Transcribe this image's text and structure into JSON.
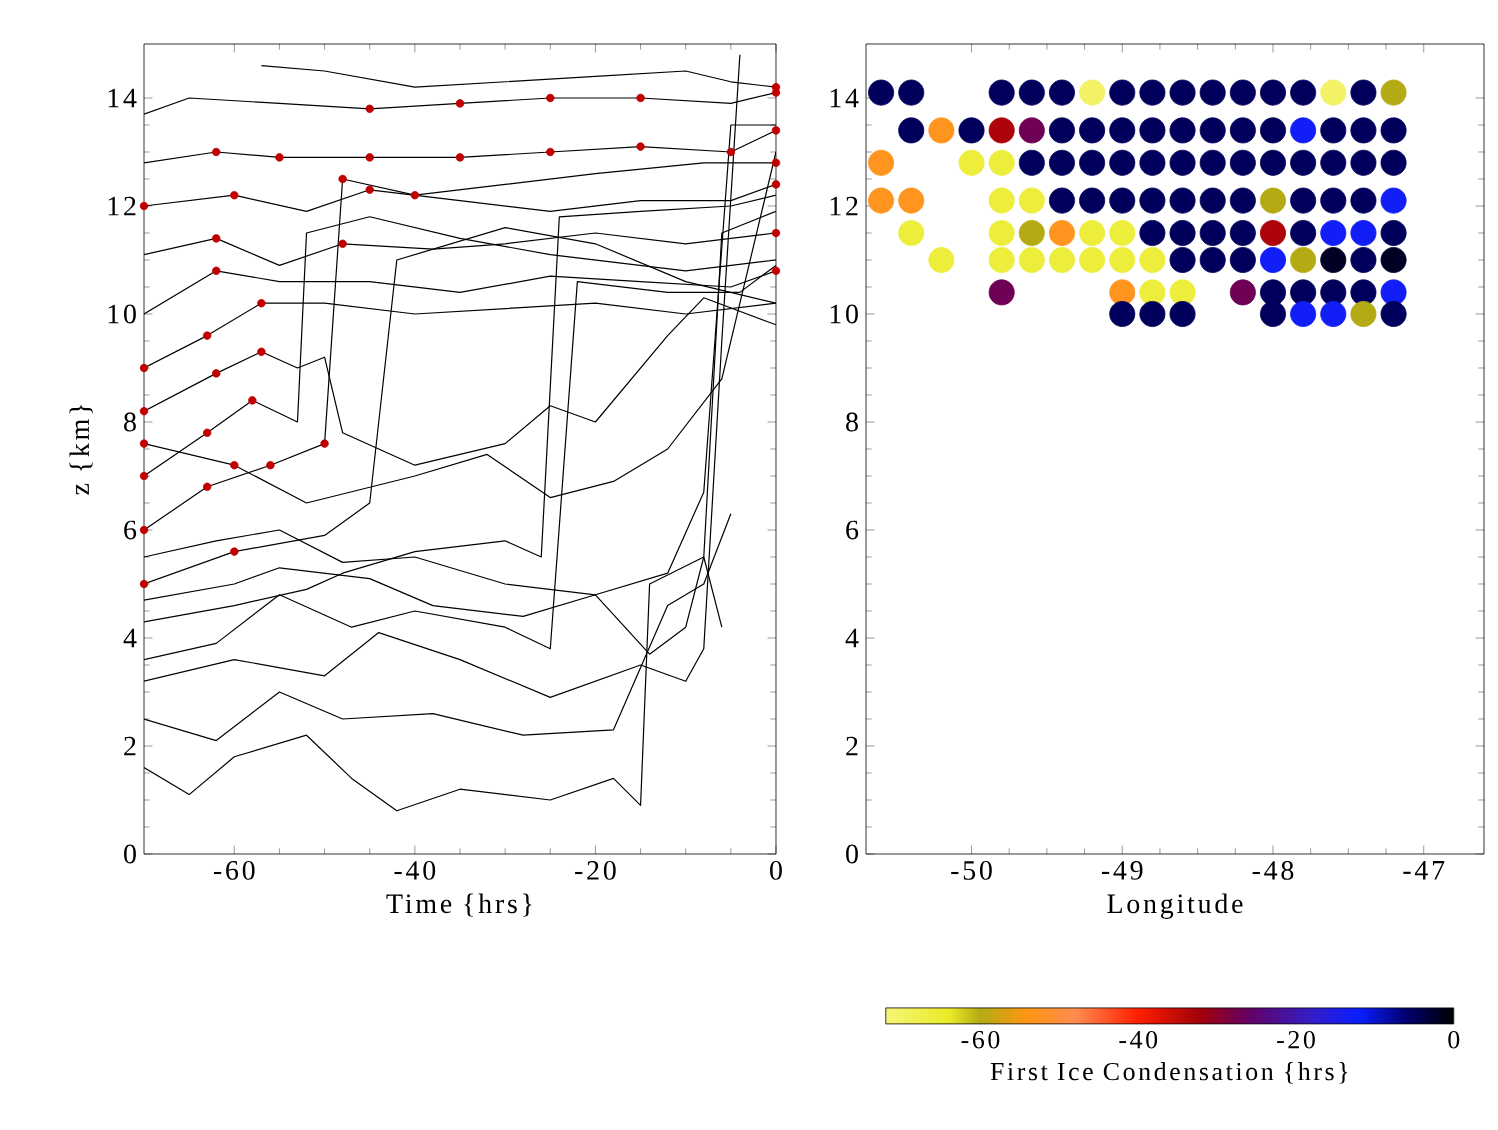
{
  "chart_data": [
    {
      "type": "line",
      "xlabel": "Time {hrs}",
      "ylabel": "z {km}",
      "xlim": [
        -70,
        0
      ],
      "ylim": [
        0,
        15
      ],
      "xticks": [
        -60,
        -40,
        -20,
        0
      ],
      "yticks": [
        0,
        2,
        4,
        6,
        8,
        10,
        12,
        14
      ],
      "series": [
        {
          "color": "#000000",
          "x": [
            -57,
            -50,
            -40,
            -30,
            -20,
            -10,
            -5,
            0
          ],
          "values": [
            14.6,
            14.5,
            14.2,
            14.3,
            14.4,
            14.5,
            14.3,
            14.2
          ]
        },
        {
          "color": "#000000",
          "x": [
            -70,
            -65,
            -55,
            -45,
            -35,
            -25,
            -15,
            -5,
            0
          ],
          "values": [
            13.7,
            14.0,
            13.9,
            13.8,
            13.9,
            14.0,
            14.0,
            13.9,
            14.1
          ]
        },
        {
          "color": "#000000",
          "x": [
            -70,
            -62,
            -55,
            -45,
            -35,
            -25,
            -15,
            -5,
            0
          ],
          "values": [
            12.8,
            13.0,
            12.9,
            12.9,
            12.9,
            13.0,
            13.1,
            13.0,
            13.4
          ]
        },
        {
          "color": "#000000",
          "x": [
            -70,
            -60,
            -52,
            -45,
            -35,
            -25,
            -15,
            -5,
            0
          ],
          "values": [
            12.0,
            12.2,
            11.9,
            12.3,
            12.1,
            11.9,
            12.1,
            12.1,
            12.4
          ]
        },
        {
          "color": "#000000",
          "x": [
            -70,
            -62,
            -55,
            -48,
            -38,
            -30,
            -20,
            -10,
            0
          ],
          "values": [
            11.1,
            11.4,
            10.9,
            11.3,
            11.2,
            11.3,
            11.5,
            11.3,
            11.5
          ]
        },
        {
          "color": "#000000",
          "x": [
            -70,
            -62,
            -55,
            -45,
            -35,
            -25,
            -15,
            -5,
            0
          ],
          "values": [
            10.0,
            10.8,
            10.6,
            10.6,
            10.4,
            10.7,
            10.6,
            10.5,
            10.8
          ]
        },
        {
          "color": "#000000",
          "x": [
            -70,
            -63,
            -57,
            -50,
            -40,
            -30,
            -20,
            -10,
            0
          ],
          "values": [
            9.0,
            9.6,
            10.2,
            10.2,
            10.0,
            10.1,
            10.2,
            10.0,
            10.2
          ]
        },
        {
          "color": "#000000",
          "x": [
            -70,
            -63,
            -58,
            -53,
            -52,
            -45,
            -35,
            -25,
            -10,
            0
          ],
          "values": [
            7.0,
            7.8,
            8.4,
            8.0,
            11.5,
            11.8,
            11.4,
            11.1,
            10.8,
            11.0
          ]
        },
        {
          "color": "#000000",
          "x": [
            -70,
            -63,
            -56,
            -50,
            -48,
            -40,
            -30,
            -20,
            -8,
            0
          ],
          "values": [
            6.0,
            6.8,
            7.2,
            7.6,
            12.5,
            12.2,
            12.4,
            12.6,
            12.8,
            12.8
          ]
        },
        {
          "color": "#000000",
          "x": [
            -70,
            -60,
            -50,
            -45,
            -42,
            -30,
            -20,
            -10,
            0
          ],
          "values": [
            5.0,
            5.6,
            5.9,
            6.5,
            11.0,
            11.6,
            11.3,
            10.6,
            10.2
          ]
        },
        {
          "color": "#000000",
          "x": [
            -70,
            -60,
            -52,
            -48,
            -40,
            -30,
            -26,
            -24,
            -15,
            -5,
            0
          ],
          "values": [
            4.3,
            4.6,
            4.9,
            5.2,
            5.6,
            5.8,
            5.5,
            11.8,
            11.9,
            12.0,
            12.2
          ]
        },
        {
          "color": "#000000",
          "x": [
            -70,
            -62,
            -55,
            -47,
            -40,
            -30,
            -25,
            -22,
            -12,
            -4,
            0
          ],
          "values": [
            3.6,
            3.9,
            4.8,
            4.2,
            4.5,
            4.2,
            3.8,
            10.6,
            10.4,
            10.4,
            10.9
          ]
        },
        {
          "color": "#000000",
          "x": [
            -70,
            -60,
            -50,
            -44,
            -35,
            -25,
            -15,
            -10,
            -8,
            -6,
            -4
          ],
          "values": [
            3.2,
            3.6,
            3.3,
            4.1,
            3.6,
            2.9,
            3.5,
            3.2,
            3.8,
            9.5,
            14.8
          ]
        },
        {
          "color": "#000000",
          "x": [
            -70,
            -65,
            -60,
            -52,
            -47,
            -42,
            -35,
            -25,
            -18,
            -15,
            -14,
            -8,
            -6
          ],
          "values": [
            1.6,
            1.1,
            1.8,
            2.2,
            1.4,
            0.8,
            1.2,
            1.0,
            1.4,
            0.9,
            5.0,
            5.5,
            4.2
          ]
        },
        {
          "color": "#000000",
          "x": [
            -70,
            -62,
            -55,
            -48,
            -38,
            -28,
            -18,
            -12,
            -8,
            -5
          ],
          "values": [
            2.5,
            2.1,
            3.0,
            2.5,
            2.6,
            2.2,
            2.3,
            4.6,
            5.0,
            6.3
          ]
        },
        {
          "color": "#000000",
          "x": [
            -70,
            -62,
            -55,
            -48,
            -40,
            -30,
            -20,
            -12,
            -8,
            -5,
            0
          ],
          "values": [
            5.5,
            5.8,
            6.0,
            5.4,
            5.5,
            5.0,
            4.8,
            5.2,
            6.7,
            13.5,
            13.5
          ]
        },
        {
          "color": "#000000",
          "x": [
            -70,
            -62,
            -57,
            -53,
            -50,
            -48,
            -40,
            -30,
            -25,
            -20,
            -12,
            -8,
            0
          ],
          "values": [
            8.2,
            8.9,
            9.3,
            9.0,
            9.2,
            7.8,
            7.2,
            7.6,
            8.3,
            8.0,
            9.6,
            10.3,
            9.8
          ]
        },
        {
          "color": "#000000",
          "x": [
            -70,
            -60,
            -52,
            -40,
            -32,
            -25,
            -18,
            -12,
            -6,
            0
          ],
          "values": [
            7.6,
            7.2,
            6.5,
            7.0,
            7.4,
            6.6,
            6.9,
            7.5,
            8.8,
            13.0
          ]
        },
        {
          "color": "#000000",
          "x": [
            -70,
            -60,
            -55,
            -45,
            -38,
            -28,
            -20,
            -14,
            -10,
            -8,
            -6,
            0
          ],
          "values": [
            4.7,
            5.0,
            5.3,
            5.1,
            4.6,
            4.4,
            4.8,
            3.7,
            4.2,
            5.5,
            11.5,
            11.9
          ]
        },
        {
          "type": "scatter",
          "color": "#c00000",
          "x": [
            -62,
            -55,
            -45,
            -35,
            -25,
            -15,
            -5,
            0,
            -45,
            -35,
            -25,
            -15,
            0,
            -70,
            -60,
            -45,
            0,
            -62,
            -48,
            0,
            -62,
            0,
            -70,
            -63,
            -57,
            -70,
            -63,
            -58,
            -70,
            -63,
            -56,
            -50,
            -48,
            -40,
            0,
            -70,
            -60,
            -70,
            -62,
            -57,
            -70,
            -60,
            0
          ],
          "values": [
            13.0,
            12.9,
            12.9,
            12.9,
            13.0,
            13.1,
            13.0,
            13.4,
            13.8,
            13.9,
            14.0,
            14.0,
            14.1,
            12.0,
            12.2,
            12.3,
            12.4,
            11.4,
            11.3,
            11.5,
            10.8,
            10.8,
            9.0,
            9.6,
            10.2,
            7.0,
            7.8,
            8.4,
            6.0,
            6.8,
            7.2,
            7.6,
            12.5,
            12.2,
            12.8,
            5.0,
            5.6,
            8.2,
            8.9,
            9.3,
            7.6,
            7.2,
            14.2
          ]
        }
      ]
    },
    {
      "type": "scatter",
      "marker": "circle",
      "xlabel": "Longitude",
      "clabel": "First Ice Condensation {hrs}",
      "xlim": [
        -50.7,
        -46.6
      ],
      "ylim": [
        0,
        15
      ],
      "xticks": [
        -50,
        -49,
        -48,
        -47
      ],
      "yticks": [
        0,
        2,
        4,
        6,
        8,
        10,
        12,
        14
      ],
      "clim": [
        -72,
        0
      ],
      "cticks": [
        -60,
        -40,
        -20,
        0
      ],
      "series": [
        {
          "x": [
            -50.6,
            -50.4,
            -49.8,
            -49.6,
            -49.4,
            -49.2,
            -49.0,
            -48.8,
            -48.6,
            -48.4,
            -48.2,
            -48.0,
            -47.8,
            -47.6,
            -47.4,
            -47.2
          ],
          "values": [
            14.1,
            14.1,
            14.1,
            14.1,
            14.1,
            14.1,
            14.1,
            14.1,
            14.1,
            14.1,
            14.1,
            14.1,
            14.1,
            14.1,
            14.1,
            14.1
          ],
          "colors": [
            "#00005c",
            "#00005c",
            "#00005c",
            "#00005c",
            "#00005c",
            "#f2f264",
            "#00005c",
            "#00005c",
            "#00005c",
            "#00005c",
            "#00005c",
            "#00005c",
            "#00005c",
            "#f2f264",
            "#00005c",
            "#b4aa14"
          ],
          "cvalues": [
            -5,
            -5,
            -5,
            -5,
            -5,
            -70,
            -5,
            -5,
            -5,
            -5,
            -5,
            -5,
            -5,
            -70,
            -5,
            -60
          ]
        },
        {
          "x": [
            -50.4,
            -50.2,
            -50.0,
            -49.8,
            -49.6,
            -49.4,
            -49.2,
            -49.0,
            -48.8,
            -48.6,
            -48.4,
            -48.2,
            -48.0,
            -47.8,
            -47.6,
            -47.4,
            -47.2
          ],
          "values": [
            13.4,
            13.4,
            13.4,
            13.4,
            13.4,
            13.4,
            13.4,
            13.4,
            13.4,
            13.4,
            13.4,
            13.4,
            13.4,
            13.4,
            13.4,
            13.4,
            13.4
          ],
          "colors": [
            "#00005c",
            "#ff941e",
            "#00005c",
            "#ac0409",
            "#6e0055",
            "#00005c",
            "#00005c",
            "#00005c",
            "#00005c",
            "#00005c",
            "#00005c",
            "#00005c",
            "#00005c",
            "#111ef6",
            "#00005c",
            "#00005c",
            "#00005c"
          ],
          "cvalues": [
            -5,
            -53,
            -5,
            -33,
            -27,
            -5,
            -5,
            -5,
            -5,
            -5,
            -5,
            -5,
            -5,
            -13,
            -5,
            -5,
            -5
          ]
        },
        {
          "x": [
            -50.6,
            -50.0,
            -49.8,
            -49.6,
            -49.4,
            -49.2,
            -49.0,
            -48.8,
            -48.6,
            -48.4,
            -48.2,
            -48.0,
            -47.8,
            -47.6,
            -47.4,
            -47.2
          ],
          "values": [
            12.8,
            12.8,
            12.8,
            12.8,
            12.8,
            12.8,
            12.8,
            12.8,
            12.8,
            12.8,
            12.8,
            12.8,
            12.8,
            12.8,
            12.8,
            12.8
          ],
          "colors": [
            "#ff941e",
            "#eded3c",
            "#eded3c",
            "#00005c",
            "#00005c",
            "#00005c",
            "#00005c",
            "#00005c",
            "#00005c",
            "#00005c",
            "#00005c",
            "#00005c",
            "#00005c",
            "#00005c",
            "#00005c",
            "#00005c"
          ],
          "cvalues": [
            -53,
            -66,
            -66,
            -5,
            -5,
            -5,
            -5,
            -5,
            -5,
            -5,
            -5,
            -5,
            -5,
            -5,
            -5,
            -5
          ]
        },
        {
          "x": [
            -50.6,
            -50.4,
            -49.8,
            -49.6,
            -49.4,
            -49.2,
            -49.0,
            -48.8,
            -48.6,
            -48.4,
            -48.2,
            -48.0,
            -47.8,
            -47.6,
            -47.4,
            -47.2
          ],
          "values": [
            12.1,
            12.1,
            12.1,
            12.1,
            12.1,
            12.1,
            12.1,
            12.1,
            12.1,
            12.1,
            12.1,
            12.1,
            12.1,
            12.1,
            12.1,
            12.1
          ],
          "colors": [
            "#ff941e",
            "#ff941e",
            "#eded3c",
            "#eded3c",
            "#00005c",
            "#00005c",
            "#00005c",
            "#00005c",
            "#00005c",
            "#00005c",
            "#00005c",
            "#b4aa14",
            "#00005c",
            "#00005c",
            "#00005c",
            "#111ef6"
          ],
          "cvalues": [
            -53,
            -53,
            -66,
            -66,
            -5,
            -5,
            -5,
            -5,
            -5,
            -5,
            -5,
            -60,
            -5,
            -5,
            -5,
            -13
          ]
        },
        {
          "x": [
            -50.4,
            -49.8,
            -49.6,
            -49.4,
            -49.2,
            -49.0,
            -48.8,
            -48.6,
            -48.4,
            -48.2,
            -48.0,
            -47.8,
            -47.6,
            -47.4,
            -47.2
          ],
          "values": [
            11.5,
            11.5,
            11.5,
            11.5,
            11.5,
            11.5,
            11.5,
            11.5,
            11.5,
            11.5,
            11.5,
            11.5,
            11.5,
            11.5,
            11.5
          ],
          "colors": [
            "#eded3c",
            "#eded3c",
            "#b4aa14",
            "#ff941e",
            "#eded3c",
            "#eded3c",
            "#00005c",
            "#00005c",
            "#00005c",
            "#00005c",
            "#ac0409",
            "#00005c",
            "#111ef6",
            "#111ef6",
            "#00005c"
          ],
          "cvalues": [
            -66,
            -66,
            -60,
            -53,
            -66,
            -66,
            -5,
            -5,
            -5,
            -5,
            -33,
            -5,
            -13,
            -13,
            -5
          ]
        },
        {
          "x": [
            -50.2,
            -49.8,
            -49.6,
            -49.4,
            -49.2,
            -49.0,
            -48.8,
            -48.6,
            -48.4,
            -48.2,
            -48.0,
            -47.8,
            -47.6,
            -47.4,
            -47.2
          ],
          "values": [
            11.0,
            11.0,
            11.0,
            11.0,
            11.0,
            11.0,
            11.0,
            11.0,
            11.0,
            11.0,
            11.0,
            11.0,
            11.0,
            11.0,
            11.0
          ],
          "colors": [
            "#eded3c",
            "#eded3c",
            "#eded3c",
            "#eded3c",
            "#eded3c",
            "#eded3c",
            "#eded3c",
            "#00005c",
            "#00005c",
            "#00005c",
            "#111ef6",
            "#b4aa14",
            "#000025",
            "#00005c",
            "#000025"
          ],
          "cvalues": [
            -66,
            -66,
            -66,
            -66,
            -66,
            -66,
            -66,
            -5,
            -5,
            -5,
            -13,
            -60,
            -2,
            -5,
            -2
          ]
        },
        {
          "x": [
            -49.8,
            -49.0,
            -48.8,
            -48.6,
            -48.2,
            -48.0,
            -47.8,
            -47.6,
            -47.4,
            -47.2
          ],
          "values": [
            10.4,
            10.4,
            10.4,
            10.4,
            10.4,
            10.4,
            10.4,
            10.4,
            10.4,
            10.4
          ],
          "colors": [
            "#6e0055",
            "#ff941e",
            "#eded3c",
            "#eded3c",
            "#6e0055",
            "#00005c",
            "#00005c",
            "#00005c",
            "#00005c",
            "#111ef6"
          ],
          "cvalues": [
            -27,
            -53,
            -66,
            -66,
            -27,
            -5,
            -5,
            -5,
            -5,
            -13
          ]
        },
        {
          "x": [
            -49.0,
            -48.8,
            -48.6,
            -48.0,
            -47.8,
            -47.6,
            -47.4,
            -47.2
          ],
          "values": [
            10.0,
            10.0,
            10.0,
            10.0,
            10.0,
            10.0,
            10.0,
            10.0
          ],
          "colors": [
            "#00005c",
            "#00005c",
            "#00005c",
            "#00005c",
            "#111ef6",
            "#111ef6",
            "#b4aa14",
            "#00005c"
          ],
          "cvalues": [
            -5,
            -5,
            -5,
            -5,
            -13,
            -13,
            -60,
            -5
          ]
        }
      ]
    }
  ]
}
